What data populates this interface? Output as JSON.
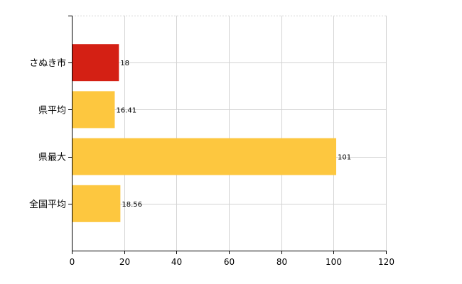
{
  "chart_data": {
    "type": "bar",
    "orientation": "horizontal",
    "categories": [
      "さぬき市",
      "県平均",
      "県最大",
      "全国平均"
    ],
    "values": [
      18,
      16.41,
      101,
      18.56
    ],
    "value_labels": [
      "18",
      "16.41",
      "101",
      "18.56"
    ],
    "colors": [
      "#d42014",
      "#fdc73f",
      "#fdc73f",
      "#fdc73f"
    ],
    "xlim": [
      0,
      120
    ],
    "xticks": [
      0,
      20,
      40,
      60,
      80,
      100,
      120
    ],
    "grid": true,
    "title": "",
    "xlabel": "",
    "ylabel": ""
  }
}
